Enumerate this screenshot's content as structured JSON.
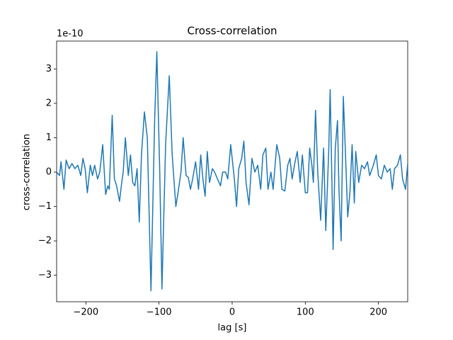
{
  "chart_data": {
    "type": "line",
    "title": "Cross-correlation",
    "x_label": "lag [s]",
    "y_label": "cross-correlation",
    "y_offset_label": "1e-10",
    "xlim": [
      -240,
      240
    ],
    "ylim": [
      -3.77,
      3.81
    ],
    "xticks": [
      {
        "value": -200,
        "label": "−200"
      },
      {
        "value": -100,
        "label": "−100"
      },
      0,
      100,
      200
    ],
    "yticks": [
      {
        "value": -3,
        "label": "−3"
      },
      {
        "value": -2,
        "label": "−2"
      },
      {
        "value": -1,
        "label": "−1"
      },
      0,
      1,
      2,
      3
    ],
    "grid": false,
    "series": [
      {
        "name": "cross-correlation",
        "color": "#1f77b4",
        "x": [
          -240,
          -236,
          -234,
          -230,
          -227,
          -223,
          -219,
          -215,
          -211,
          -207,
          -204,
          -201,
          -198,
          -194,
          -191,
          -188,
          -184,
          -181,
          -177,
          -173,
          -170,
          -168,
          -164,
          -161,
          -158,
          -154,
          -151,
          -149,
          -146,
          -142,
          -139,
          -136,
          -133,
          -130,
          -127,
          -124,
          -120,
          -116,
          -111,
          -106,
          -103,
          -99,
          -96,
          -91,
          -86,
          -82,
          -77,
          -74,
          -70,
          -67,
          -63,
          -60,
          -57,
          -54,
          -50,
          -46,
          -43,
          -40,
          -37,
          -34,
          -31,
          -27,
          -24,
          -20,
          -16,
          -13,
          -9,
          -6,
          -2,
          3,
          6,
          9,
          13,
          16,
          19,
          23,
          27,
          31,
          35,
          39,
          42,
          46,
          49,
          53,
          56,
          61,
          65,
          68,
          72,
          76,
          79,
          82,
          86,
          89,
          93,
          96,
          100,
          103,
          106,
          109,
          111,
          114,
          117,
          121,
          125,
          128,
          132,
          134,
          137,
          138,
          141,
          144,
          146,
          149,
          152,
          155,
          158,
          161,
          164,
          167,
          169,
          173,
          177,
          181,
          185,
          188,
          193,
          197,
          200,
          204,
          208,
          212,
          216,
          219,
          222,
          226,
          230,
          233,
          237,
          240
        ],
        "values": [
          0.0,
          -0.1,
          0.3,
          -0.5,
          0.35,
          0.1,
          0.25,
          0.1,
          0.2,
          -0.1,
          0.4,
          0.1,
          -0.6,
          0.2,
          -0.1,
          0.2,
          -0.2,
          0.0,
          0.8,
          -0.65,
          -0.4,
          -0.5,
          1.65,
          -0.2,
          -0.4,
          -0.85,
          -0.3,
          0.0,
          1.0,
          -0.1,
          0.5,
          -0.3,
          -0.4,
          0.1,
          -1.45,
          0.5,
          1.75,
          1.0,
          -3.45,
          1.5,
          3.5,
          0.0,
          -3.4,
          0.8,
          2.8,
          0.5,
          -1.0,
          -0.6,
          0.0,
          1.0,
          -0.1,
          -0.15,
          -0.5,
          -0.2,
          0.3,
          -0.5,
          0.5,
          -0.2,
          -0.7,
          0.6,
          -0.3,
          0.1,
          0.0,
          -0.2,
          -0.4,
          0.0,
          0.0,
          -0.2,
          0.8,
          -0.2,
          -1.0,
          0.1,
          0.4,
          0.9,
          -0.3,
          -0.95,
          0.4,
          0.0,
          0.2,
          -0.5,
          0.5,
          0.7,
          -0.5,
          0.0,
          -0.5,
          0.8,
          0.4,
          -0.5,
          -0.55,
          0.2,
          0.4,
          -0.2,
          0.3,
          0.6,
          -0.3,
          0.5,
          -0.6,
          -0.6,
          0.7,
          0.2,
          -0.3,
          1.8,
          0.0,
          -1.4,
          0.7,
          -1.7,
          0.6,
          2.4,
          -1.0,
          -2.25,
          0.7,
          1.5,
          -0.5,
          -2.0,
          2.2,
          0.5,
          -1.3,
          -0.6,
          0.8,
          -0.9,
          0.6,
          -0.3,
          0.2,
          0.1,
          0.3,
          -0.1,
          0.2,
          0.5,
          -0.1,
          -0.2,
          0.2,
          0.0,
          0.1,
          -0.5,
          0.1,
          0.2,
          0.5,
          -0.2,
          -0.5,
          0.25
        ]
      }
    ]
  }
}
